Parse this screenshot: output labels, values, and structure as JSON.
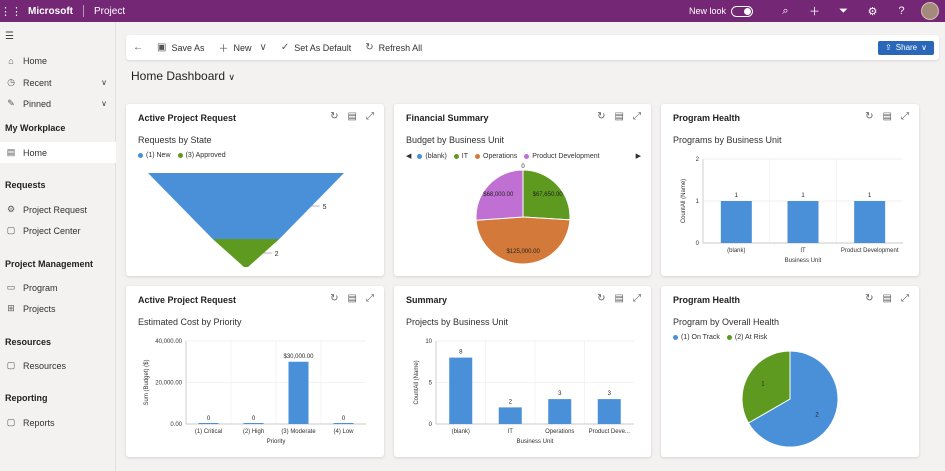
{
  "topbar": {
    "brand": "Microsoft",
    "app": "Project",
    "new_look": "New look",
    "colors": {
      "bar": "#742774"
    },
    "icons": [
      "waffle-icon",
      "search-icon",
      "plus-icon",
      "filter-icon",
      "gear-icon",
      "help-icon"
    ]
  },
  "sidebar": {
    "top_items": [
      {
        "label": "Home",
        "icon": "home-icon"
      },
      {
        "label": "Recent",
        "icon": "clock-icon"
      },
      {
        "label": "Pinned",
        "icon": "pin-icon"
      }
    ],
    "sections": [
      {
        "title": "My Workplace",
        "items": [
          {
            "label": "Home",
            "icon": "home-dashboard-icon"
          }
        ]
      },
      {
        "title": "Requests",
        "items": [
          {
            "label": "Project Request",
            "icon": "gear-icon"
          },
          {
            "label": "Project Center",
            "icon": "document-icon"
          }
        ]
      },
      {
        "title": "Project Management",
        "items": [
          {
            "label": "Program",
            "icon": "monitor-icon"
          },
          {
            "label": "Projects",
            "icon": "table-icon"
          }
        ]
      },
      {
        "title": "Resources",
        "items": [
          {
            "label": "Resources",
            "icon": "document-icon"
          }
        ]
      },
      {
        "title": "Reporting",
        "items": [
          {
            "label": "Reports",
            "icon": "document-icon"
          }
        ]
      }
    ]
  },
  "commandbar": {
    "save_as": "Save As",
    "new": "New",
    "set_default": "Set As Default",
    "refresh_all": "Refresh All",
    "share": "Share"
  },
  "dashboard": {
    "title": "Home Dashboard"
  },
  "cards": [
    {
      "title": "Active Project Request",
      "subtitle": "Requests by State",
      "legend": [
        {
          "name": "(1) New",
          "color": "#4a90d9"
        },
        {
          "name": "(3) Approved",
          "color": "#5e9a1f"
        }
      ]
    },
    {
      "title": "Financial Summary",
      "subtitle": "Budget by Business Unit",
      "legend": [
        {
          "name": "(blank)",
          "color": "#4a90d9"
        },
        {
          "name": "IT",
          "color": "#5e9a1f"
        },
        {
          "name": "Operations",
          "color": "#d37a3a"
        },
        {
          "name": "Product Development",
          "color": "#c06fd3"
        }
      ]
    },
    {
      "title": "Program Health",
      "subtitle": "Programs by Business Unit",
      "legend": []
    },
    {
      "title": "Active Project Request",
      "subtitle": "Estimated Cost by Priority",
      "legend": []
    },
    {
      "title": "Summary",
      "subtitle": "Projects by Business Unit",
      "legend": []
    },
    {
      "title": "Program Health",
      "subtitle": "Program by Overall Health",
      "legend": [
        {
          "name": "(1) On Track",
          "color": "#4a90d9"
        },
        {
          "name": "(2) At Risk",
          "color": "#5e9a1f"
        }
      ]
    }
  ],
  "chart_data": [
    {
      "type": "funnel",
      "categories": [
        "(1) New",
        "(3) Approved"
      ],
      "values": [
        5,
        2
      ],
      "colors": [
        "#4a90d9",
        "#5e9a1f"
      ]
    },
    {
      "type": "pie",
      "categories": [
        "(blank)",
        "IT",
        "Operations",
        "Product Development"
      ],
      "values": [
        0,
        67650,
        125000,
        68000
      ],
      "labels": [
        "0",
        "$67,650.00",
        "$125,000.00",
        "$68,000.00"
      ],
      "colors": [
        "#4a90d9",
        "#5e9a1f",
        "#d37a3a",
        "#c06fd3"
      ]
    },
    {
      "type": "bar",
      "categories": [
        "(blank)",
        "IT",
        "Product Development"
      ],
      "values": [
        1,
        1,
        1
      ],
      "xlabel": "Business Unit",
      "ylabel": "CountAll (Name)",
      "ylim": [
        0,
        2
      ],
      "yticks": [
        "0",
        "1",
        "2"
      ],
      "color": "#4a90d9"
    },
    {
      "type": "bar",
      "categories": [
        "(1) Critical",
        "(2) High",
        "(3) Moderate",
        "(4) Low"
      ],
      "values": [
        0,
        0,
        30000,
        0
      ],
      "labels": [
        "0",
        "0",
        "$30,000.00",
        "0"
      ],
      "xlabel": "Priority",
      "ylabel": "Sum (Budget) ($)",
      "ylim": [
        0,
        40000
      ],
      "yticks": [
        "0.00",
        "20,000.00",
        "40,000.00"
      ],
      "color": "#4a90d9"
    },
    {
      "type": "bar",
      "categories": [
        "(blank)",
        "IT",
        "Operations",
        "Product Deve..."
      ],
      "values": [
        8,
        2,
        3,
        3
      ],
      "xlabel": "Business Unit",
      "ylabel": "CountAll (Name)",
      "ylim": [
        0,
        10
      ],
      "yticks": [
        "0",
        "5",
        "10"
      ],
      "color": "#4a90d9"
    },
    {
      "type": "pie",
      "categories": [
        "(1) On Track",
        "(2) At Risk"
      ],
      "values": [
        2,
        1
      ],
      "labels": [
        "2",
        "1"
      ],
      "colors": [
        "#4a90d9",
        "#5e9a1f"
      ]
    }
  ]
}
